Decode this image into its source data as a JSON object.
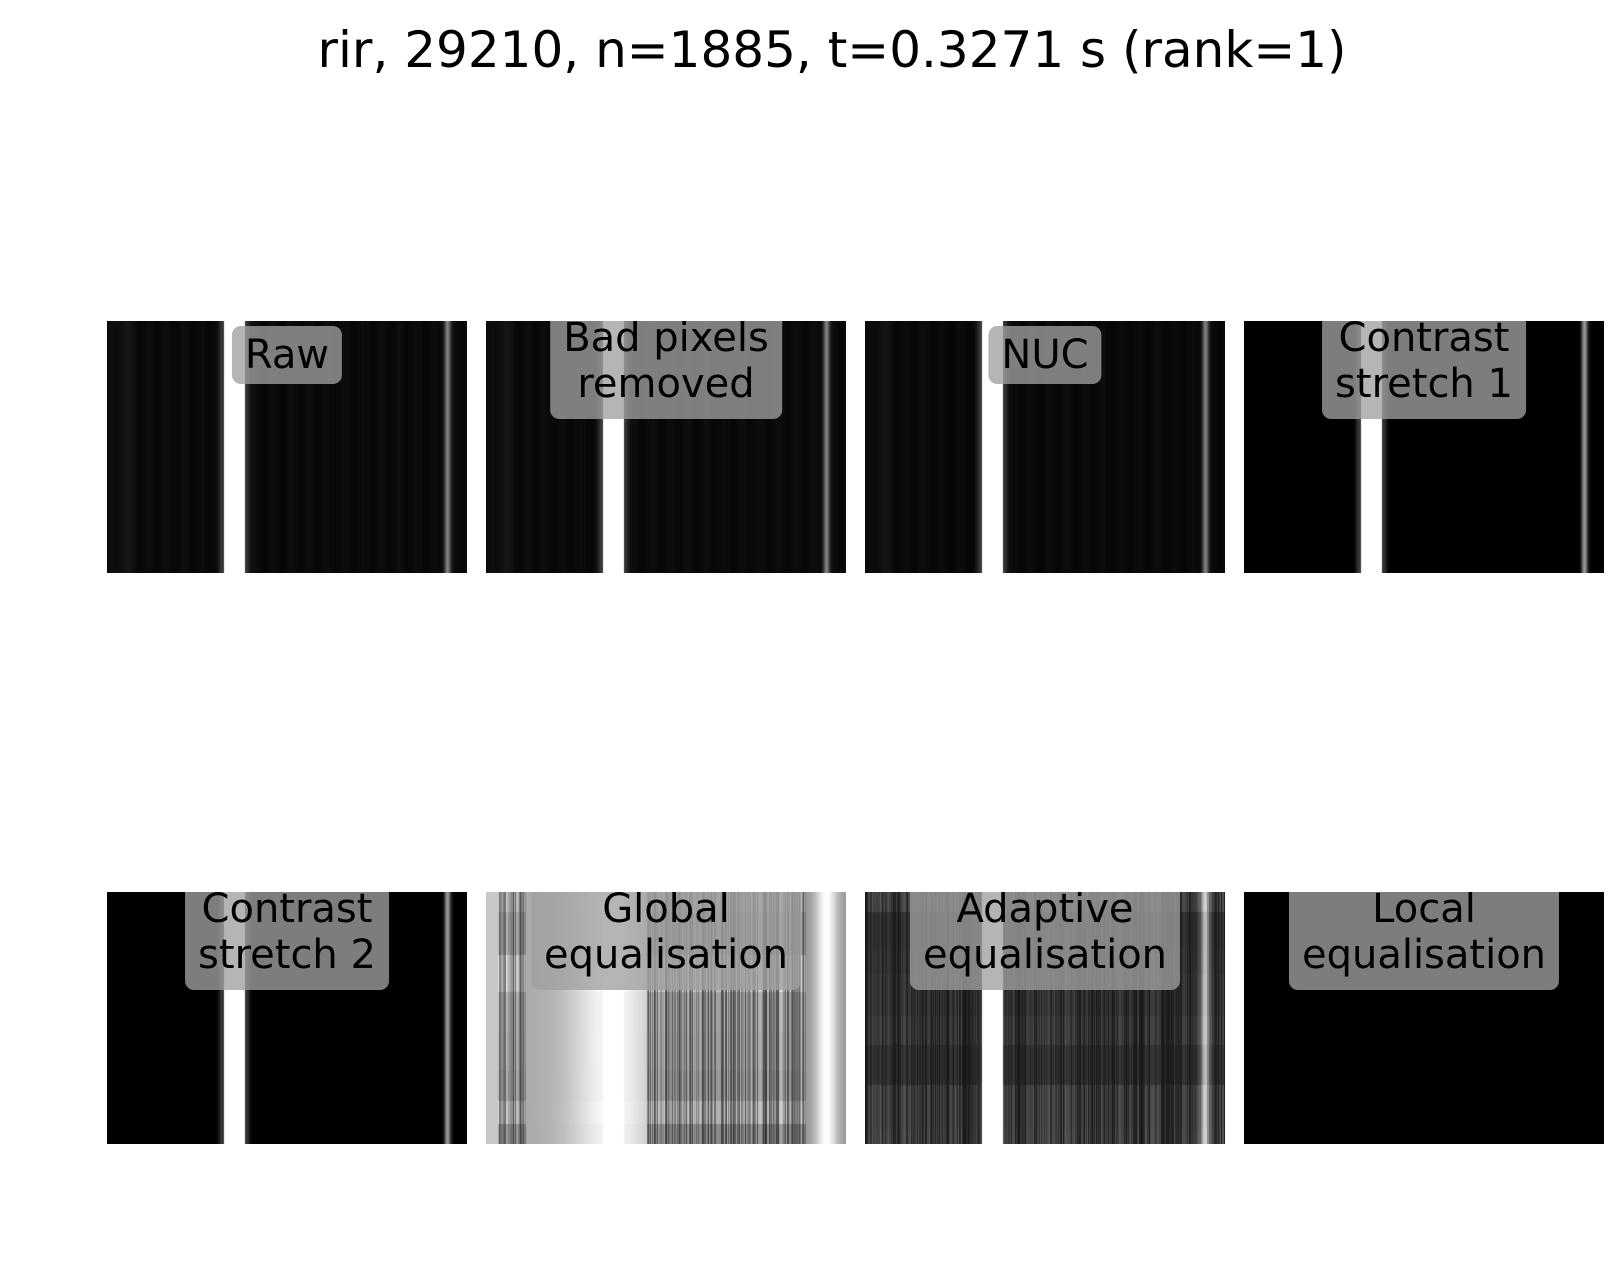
{
  "figure": {
    "title": "rir, 29210, n=1885, t=0.3271 s (rank=1)"
  },
  "panels": [
    {
      "label": "Raw",
      "style": "raw"
    },
    {
      "label": "Bad pixels\nremoved",
      "style": "raw"
    },
    {
      "label": "NUC",
      "style": "nuc"
    },
    {
      "label": "Contrast\nstretch 1",
      "style": "stretch"
    },
    {
      "label": "Contrast\nstretch 2",
      "style": "stretch"
    },
    {
      "label": "Global\nequalisation",
      "style": "global"
    },
    {
      "label": "Adaptive\nequalisation",
      "style": "adaptive"
    },
    {
      "label": "Local\nequalisation",
      "style": "black"
    }
  ]
}
